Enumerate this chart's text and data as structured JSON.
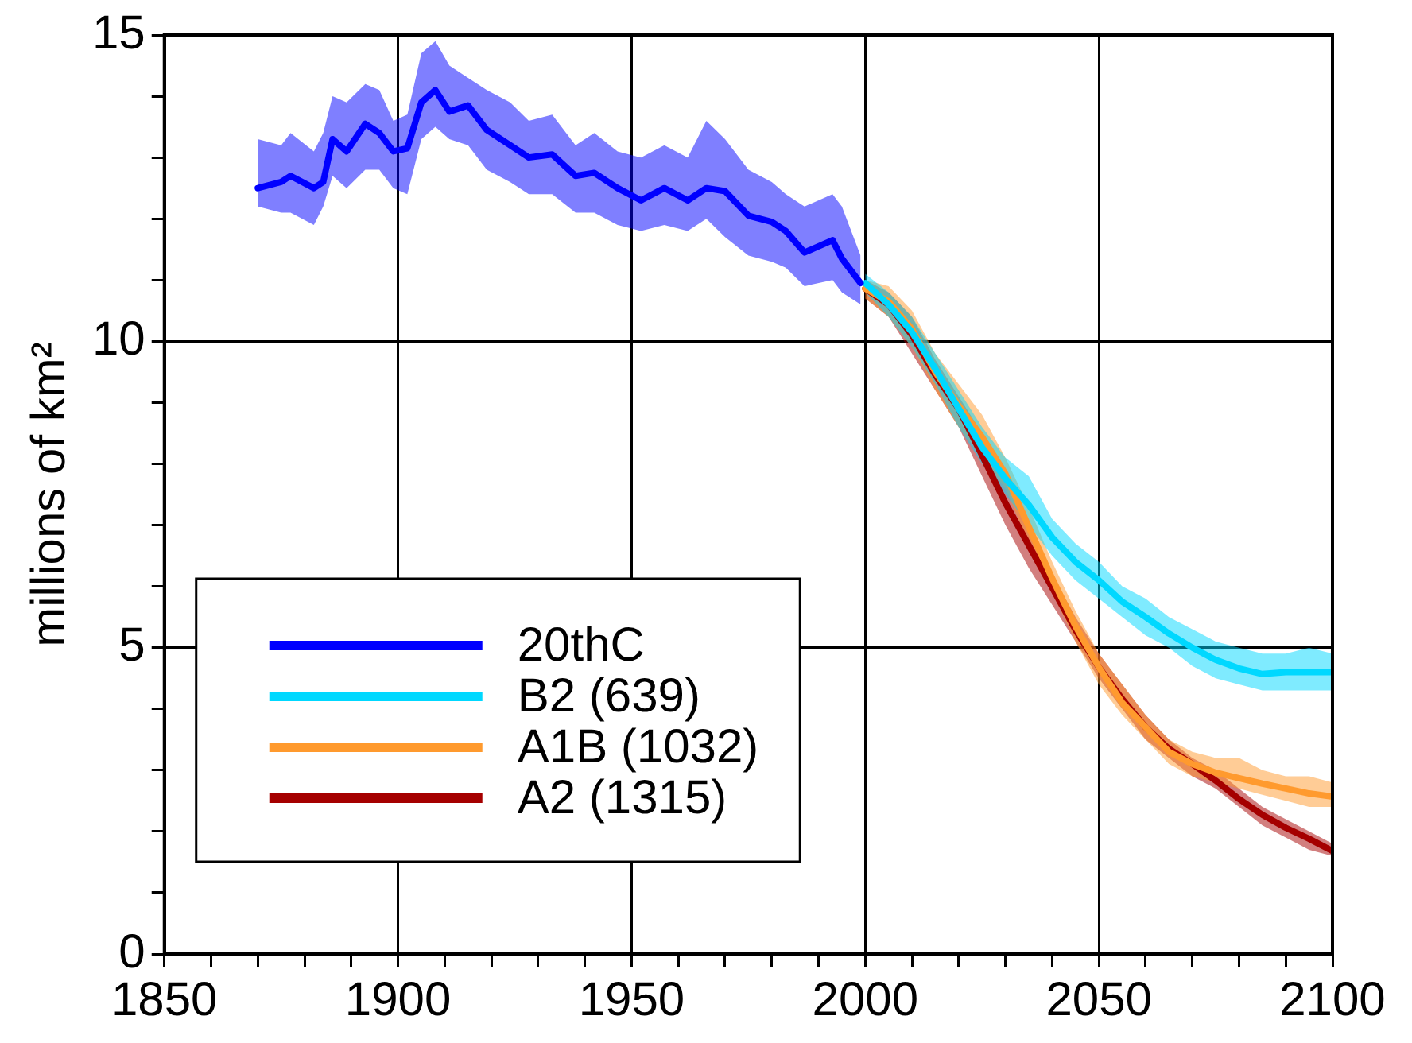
{
  "chart_data": {
    "type": "line",
    "ylabel": "millions of km²",
    "xlim": [
      1850,
      2100
    ],
    "xticks": [
      1850,
      {
        "value": 1860,
        "label": null
      },
      {
        "value": 1870,
        "label": null
      },
      {
        "value": 1880,
        "label": null
      },
      {
        "value": 1890,
        "label": null
      },
      1900,
      {
        "value": 1910,
        "label": null
      },
      {
        "value": 1920,
        "label": null
      },
      {
        "value": 1930,
        "label": null
      },
      {
        "value": 1940,
        "label": null
      },
      1950,
      {
        "value": 1960,
        "label": null
      },
      {
        "value": 1970,
        "label": null
      },
      {
        "value": 1980,
        "label": null
      },
      {
        "value": 1990,
        "label": null
      },
      2000,
      {
        "value": 2010,
        "label": null
      },
      {
        "value": 2020,
        "label": null
      },
      {
        "value": 2030,
        "label": null
      },
      {
        "value": 2040,
        "label": null
      },
      2050,
      {
        "value": 2060,
        "label": null
      },
      {
        "value": 2070,
        "label": null
      },
      {
        "value": 2080,
        "label": null
      },
      {
        "value": 2090,
        "label": null
      },
      2100
    ],
    "ylim": [
      0,
      15
    ],
    "yticks": [
      0,
      {
        "value": 1,
        "label": null
      },
      {
        "value": 2,
        "label": null
      },
      {
        "value": 3,
        "label": null
      },
      {
        "value": 4,
        "label": null
      },
      5,
      {
        "value": 6,
        "label": null
      },
      {
        "value": 7,
        "label": null
      },
      {
        "value": 8,
        "label": null
      },
      {
        "value": 9,
        "label": null
      },
      10,
      {
        "value": 11,
        "label": null
      },
      {
        "value": 12,
        "label": null
      },
      {
        "value": 13,
        "label": null
      },
      {
        "value": 14,
        "label": null
      },
      15
    ],
    "grid": true,
    "legend": "bottom left",
    "line_style": "solid",
    "marker": "none",
    "series": [
      {
        "name": "20thC",
        "color": "#0000ff",
        "x": [
          1870,
          1875,
          1877,
          1882,
          1884,
          1886,
          1889,
          1893,
          1896,
          1899,
          1902,
          1905,
          1908,
          1911,
          1915,
          1919,
          1924,
          1928,
          1933,
          1938,
          1942,
          1947,
          1952,
          1957,
          1962,
          1966,
          1970,
          1975,
          1980,
          1983,
          1987,
          1993,
          1995,
          1999
        ],
        "values": [
          12.5,
          12.6,
          12.7,
          12.5,
          12.6,
          13.3,
          13.1,
          13.55,
          13.4,
          13.1,
          13.15,
          13.9,
          14.1,
          13.75,
          13.85,
          13.45,
          13.2,
          13.0,
          13.05,
          12.7,
          12.75,
          12.5,
          12.3,
          12.5,
          12.3,
          12.5,
          12.45,
          12.05,
          11.95,
          11.8,
          11.45,
          11.65,
          11.35,
          10.95
        ],
        "upper": [
          13.3,
          13.2,
          13.4,
          13.1,
          13.4,
          14.0,
          13.9,
          14.2,
          14.1,
          13.6,
          13.7,
          14.7,
          14.9,
          14.5,
          14.3,
          14.1,
          13.9,
          13.6,
          13.7,
          13.2,
          13.4,
          13.1,
          13.0,
          13.2,
          13.0,
          13.6,
          13.3,
          12.8,
          12.6,
          12.4,
          12.2,
          12.4,
          12.2,
          11.4
        ],
        "lower": [
          12.2,
          12.1,
          12.1,
          11.9,
          12.2,
          12.7,
          12.5,
          12.8,
          12.8,
          12.5,
          12.4,
          13.3,
          13.5,
          13.3,
          13.2,
          12.8,
          12.6,
          12.4,
          12.4,
          12.1,
          12.1,
          11.9,
          11.8,
          11.9,
          11.8,
          12.0,
          11.7,
          11.4,
          11.3,
          11.2,
          10.9,
          11.0,
          10.8,
          10.6
        ]
      },
      {
        "name": "B2 (639)",
        "color": "#00d8ff",
        "x": [
          2000,
          2005,
          2010,
          2015,
          2020,
          2025,
          2030,
          2035,
          2040,
          2045,
          2050,
          2055,
          2060,
          2065,
          2070,
          2075,
          2080,
          2085,
          2090,
          2095,
          2100
        ],
        "values": [
          10.95,
          10.6,
          10.15,
          9.55,
          8.9,
          8.27,
          7.76,
          7.33,
          6.8,
          6.4,
          6.1,
          5.75,
          5.5,
          5.23,
          5.0,
          4.8,
          4.66,
          4.57,
          4.6,
          4.6,
          4.6
        ],
        "upper": [
          11.1,
          10.8,
          10.4,
          9.8,
          9.2,
          8.6,
          8.1,
          7.8,
          7.1,
          6.7,
          6.4,
          6.0,
          5.8,
          5.5,
          5.3,
          5.1,
          5.0,
          4.9,
          4.9,
          5.0,
          4.9
        ],
        "lower": [
          10.8,
          10.4,
          9.9,
          9.3,
          8.6,
          8.0,
          7.5,
          7.0,
          6.5,
          6.1,
          5.8,
          5.5,
          5.2,
          5.0,
          4.7,
          4.5,
          4.4,
          4.3,
          4.3,
          4.3,
          4.3
        ]
      },
      {
        "name": "A1B (1032)",
        "color": "#ff9a2e",
        "x": [
          2000,
          2005,
          2010,
          2015,
          2020,
          2025,
          2030,
          2035,
          2040,
          2045,
          2050,
          2055,
          2060,
          2065,
          2070,
          2075,
          2080,
          2085,
          2090,
          2095,
          2100
        ],
        "values": [
          10.86,
          10.65,
          10.2,
          9.5,
          8.95,
          8.44,
          7.84,
          6.97,
          6.13,
          5.35,
          4.68,
          4.1,
          3.7,
          3.3,
          3.1,
          2.96,
          2.87,
          2.78,
          2.7,
          2.62,
          2.57
        ],
        "upper": [
          11.0,
          10.9,
          10.5,
          9.8,
          9.3,
          8.8,
          8.1,
          7.3,
          6.4,
          5.6,
          4.9,
          4.4,
          3.9,
          3.5,
          3.3,
          3.2,
          3.2,
          3.0,
          2.9,
          2.9,
          2.8
        ],
        "lower": [
          10.7,
          10.4,
          9.9,
          9.2,
          8.6,
          8.1,
          7.6,
          6.7,
          5.9,
          5.1,
          4.4,
          3.9,
          3.5,
          3.1,
          2.9,
          2.8,
          2.7,
          2.6,
          2.5,
          2.4,
          2.4
        ]
      },
      {
        "name": "A2 (1315)",
        "color": "#a50000",
        "x": [
          2000,
          2005,
          2010,
          2015,
          2020,
          2025,
          2030,
          2035,
          2040,
          2045,
          2050,
          2055,
          2060,
          2065,
          2070,
          2075,
          2080,
          2085,
          2090,
          2095,
          2100
        ],
        "values": [
          10.86,
          10.6,
          10.1,
          9.45,
          8.9,
          8.14,
          7.36,
          6.67,
          5.98,
          5.29,
          4.68,
          4.16,
          3.7,
          3.35,
          3.1,
          2.83,
          2.53,
          2.27,
          2.06,
          1.88,
          1.68
        ],
        "upper": [
          11.0,
          10.8,
          10.4,
          9.7,
          9.1,
          8.5,
          7.7,
          6.9,
          6.2,
          5.5,
          4.9,
          4.4,
          3.9,
          3.5,
          3.2,
          3.0,
          2.7,
          2.4,
          2.2,
          2.0,
          1.8
        ],
        "lower": [
          10.7,
          10.4,
          9.8,
          9.2,
          8.6,
          7.8,
          7.0,
          6.3,
          5.7,
          5.1,
          4.5,
          4.0,
          3.5,
          3.2,
          2.9,
          2.7,
          2.4,
          2.1,
          1.9,
          1.7,
          1.6
        ]
      }
    ]
  }
}
